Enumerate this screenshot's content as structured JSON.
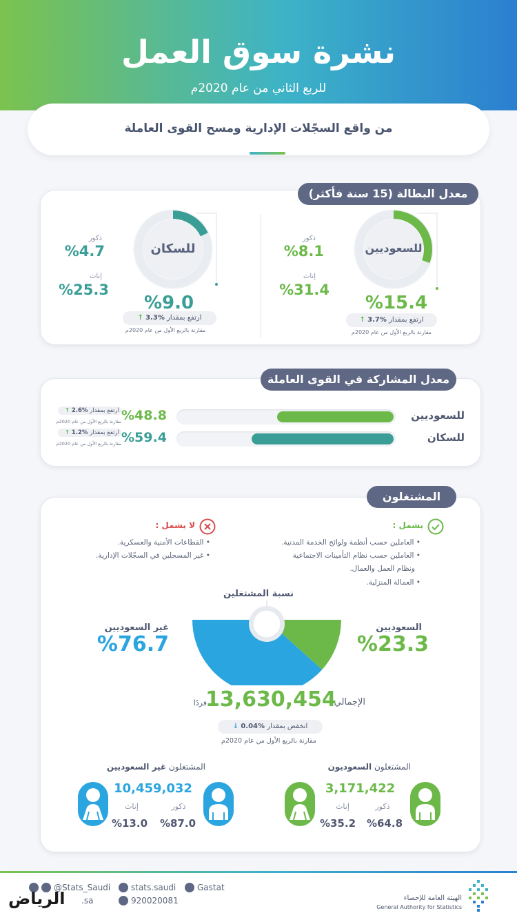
{
  "header": {
    "title": "نشرة سوق العمل",
    "subtitle": "للربع الثاني من عام 2020م",
    "source": "من واقع السجّلات الإدارية ومسح القوى العاملة"
  },
  "unemployment": {
    "title": "معدل البطالة (15 سنة فأكثر)",
    "saudis": {
      "label": "للسعوديين",
      "rate": "%15.4",
      "rate_value": 15.4,
      "males_label": "ذكور",
      "males": "%8.1",
      "females_label": "إناث",
      "females": "%31.4",
      "change": "ارتفع بمقدار",
      "change_value": "%3.7",
      "compare": "مقارنة بالربع الأول من عام 2020م"
    },
    "population": {
      "label": "للسكان",
      "rate": "%9.0",
      "rate_value": 9.0,
      "males_label": "ذكور",
      "males": "%4.7",
      "females_label": "إناث",
      "females": "%25.3",
      "change": "ارتفع بمقدار",
      "change_value": "%3.3",
      "compare": "مقارنة بالربع الأول من عام 2020م"
    }
  },
  "participation": {
    "title": "معدل المشاركة في القوى العاملة",
    "rows": [
      {
        "label": "للسعوديين",
        "value": "%48.8",
        "fill": 0.488,
        "change": "ارتفع بمقدار",
        "change_value": "%2.6",
        "compare": "مقارنة بالربع الأول من عام 2020م",
        "color": "#6cb94a"
      },
      {
        "label": "للسكان",
        "value": "%59.4",
        "fill": 0.594,
        "change": "ارتفع بمقدار",
        "change_value": "%1.2",
        "compare": "مقارنة بالربع الأول من عام 2020م",
        "color": "#3a9e96"
      }
    ]
  },
  "employed": {
    "title": "المشتغلون",
    "includes_label": "يشمل :",
    "includes": [
      "العاملين حسب أنظمة ولوائح الخدمة المدنية.",
      "العاملين حسب نظام التأمينات الاجتماعية",
      "ونظام العمل والعمال.",
      "العمالة المنزلية."
    ],
    "excludes_label": "لا يشمل :",
    "excludes": [
      "القطاعات الأمنية والعسكرية.",
      "غير المسجلين في السجّلات الإدارية."
    ],
    "share_title": "نسبة المشتغلين",
    "saudis_label": "السعوديين",
    "saudis_share": "%23.3",
    "saudis_share_value": 23.3,
    "non_saudis_label": "غير السعوديين",
    "non_saudis_share": "%76.7",
    "non_saudis_share_value": 76.7,
    "total_label": "الإجمالي",
    "total": "13,630,454",
    "total_unit": "فردًا",
    "change": "انخفض بمقدار",
    "change_value": "%0.04",
    "compare": "مقارنة بالربع الأول من عام 2020م",
    "saudi_workers": {
      "title_a": "المشتغلون",
      "title_b": "السعوديون",
      "total": "3,171,422",
      "males_label": "ذكور",
      "males": "%64.8",
      "females_label": "إناث",
      "females": "%35.2"
    },
    "non_saudi_workers": {
      "title_a": "المشتغلون",
      "title_b": "غير السعوديين",
      "total": "10,459,032",
      "males_label": "ذكور",
      "males": "%87.0",
      "females_label": "إناث",
      "females": "%13.0"
    }
  },
  "footer": {
    "twitter": "@Stats_Saudi",
    "facebook": "stats.saudi",
    "linkedin": "Gastat",
    "phone": "920020081",
    "web": ".sa",
    "gastat_ar": "الهيئة العامة للإحصاء",
    "gastat_en": "General Authority for Statistics",
    "riyadh": "الرياض"
  },
  "colors": {
    "green": "#6cb94a",
    "teal": "#3a9e96",
    "blue": "#2aa5df",
    "dark": "#5e6783"
  }
}
